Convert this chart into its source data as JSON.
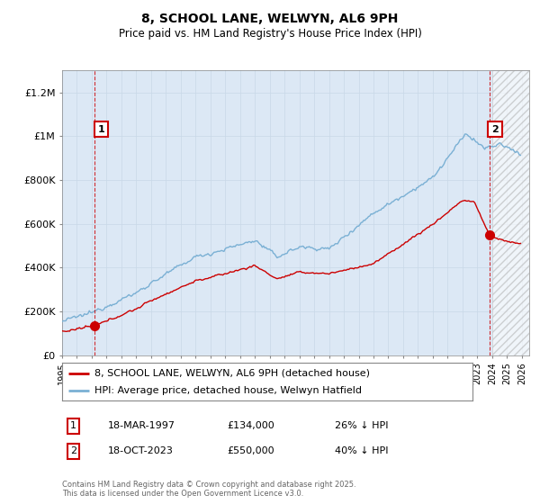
{
  "title": "8, SCHOOL LANE, WELWYN, AL6 9PH",
  "subtitle": "Price paid vs. HM Land Registry's House Price Index (HPI)",
  "ylabel_ticks": [
    "£0",
    "£200K",
    "£400K",
    "£600K",
    "£800K",
    "£1M",
    "£1.2M"
  ],
  "ytick_values": [
    0,
    200000,
    400000,
    600000,
    800000,
    1000000,
    1200000
  ],
  "ylim": [
    0,
    1300000
  ],
  "xlim_start": 1995.0,
  "xlim_end": 2026.5,
  "hatch_start": 2024.0,
  "red_line_label": "8, SCHOOL LANE, WELWYN, AL6 9PH (detached house)",
  "blue_line_label": "HPI: Average price, detached house, Welwyn Hatfield",
  "sale1_date": "18-MAR-1997",
  "sale1_price": "£134,000",
  "sale1_hpi": "26% ↓ HPI",
  "sale1_year": 1997.21,
  "sale1_value": 134000,
  "sale2_date": "18-OCT-2023",
  "sale2_price": "£550,000",
  "sale2_hpi": "40% ↓ HPI",
  "sale2_year": 2023.8,
  "sale2_value": 550000,
  "footer": "Contains HM Land Registry data © Crown copyright and database right 2025.\nThis data is licensed under the Open Government Licence v3.0.",
  "red_color": "#cc0000",
  "blue_color": "#7ab0d4",
  "dashed_color": "#cc0000",
  "grid_color": "#c8d8e8",
  "plot_bg_color": "#dce8f5",
  "label1_near_top": true,
  "label2_near_top": true
}
